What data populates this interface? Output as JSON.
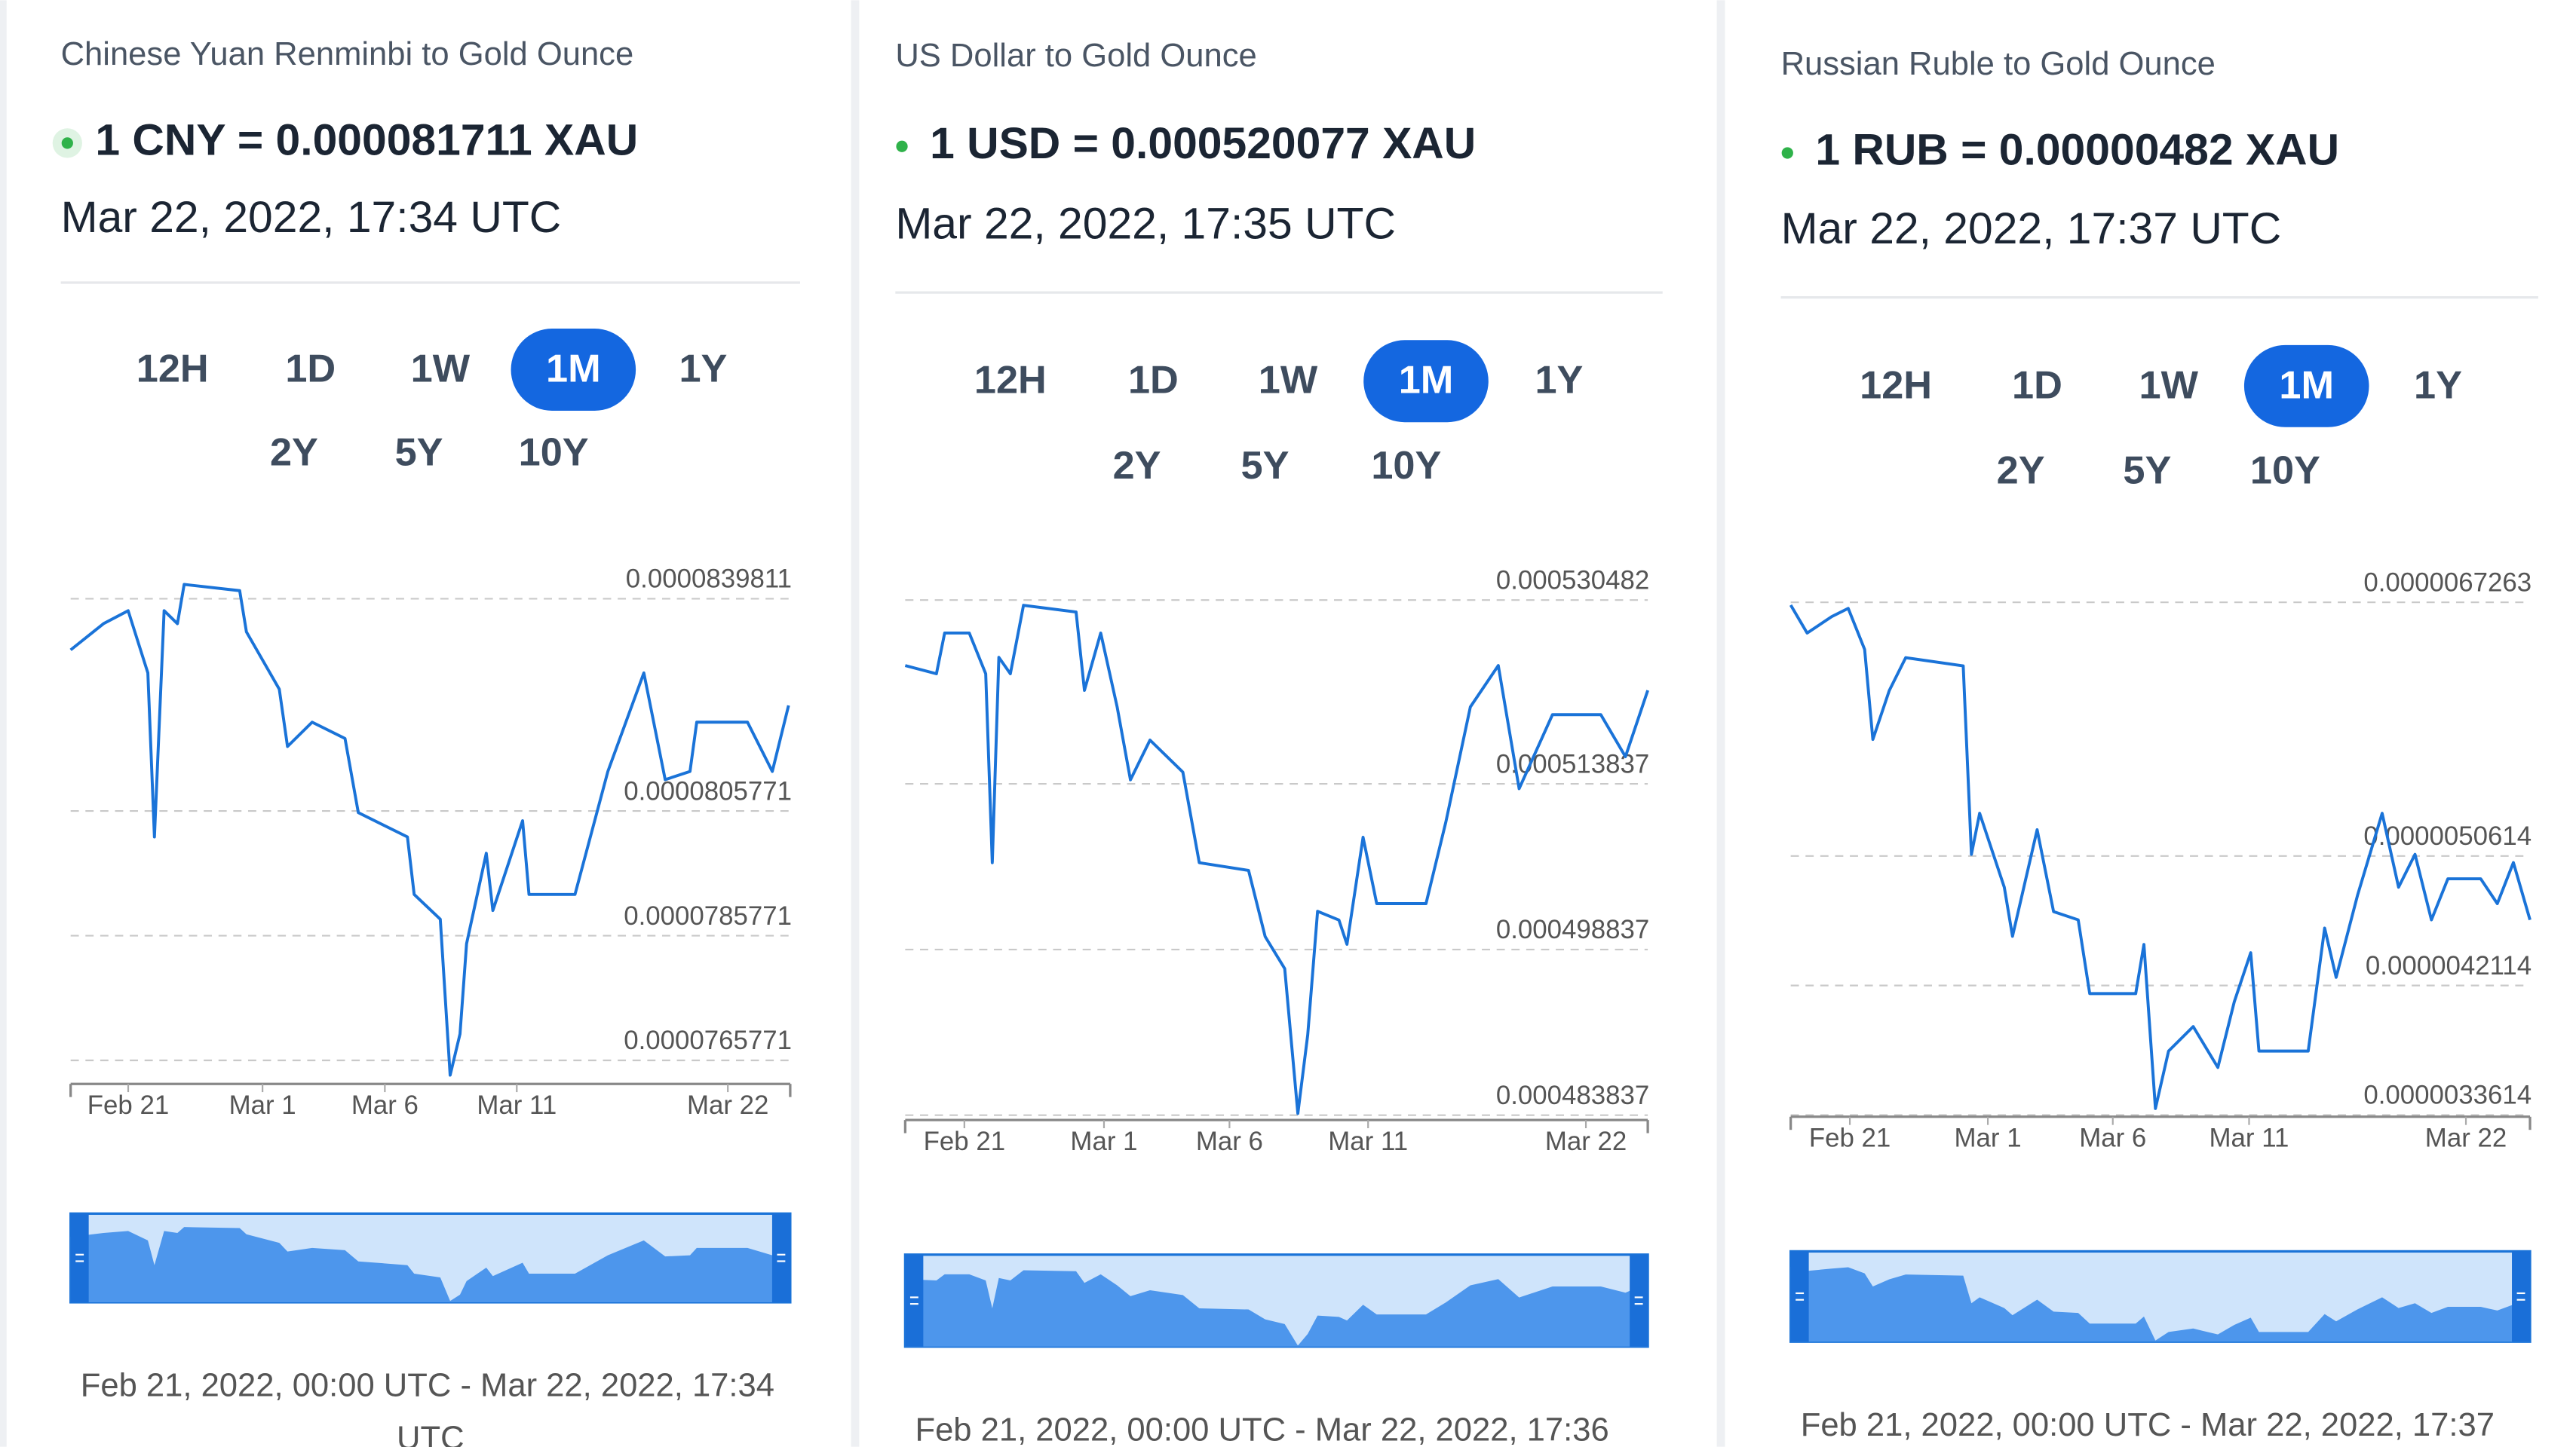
{
  "panels": [
    {
      "title": "Chinese Yuan Renminbi to Gold Ounce",
      "rate": "1 CNY = 0.000081711 XAU",
      "date": "Mar 22, 2022, 17:34 UTC",
      "ranges": [
        "12H",
        "1D",
        "1W",
        "1M",
        "1Y",
        "2Y",
        "5Y",
        "10Y"
      ],
      "selected": "1M",
      "chart": {
        "type": "line",
        "color": "#1a73d8",
        "x": [
          0,
          1.37,
          2.4,
          3.22,
          3.49,
          3.9,
          4.45,
          4.73,
          7.05,
          7.33,
          8.7,
          9.04,
          10.07,
          11.44,
          11.99,
          14.04,
          14.32,
          15.41,
          15.82,
          16.23,
          16.51,
          17.33,
          17.6,
          18.84,
          19.11,
          21.03,
          22.4,
          23.9,
          24.79,
          25.82,
          26.1,
          28.22,
          29.25,
          29.93
        ],
        "values": [
          8.316e-05,
          8.358e-05,
          8.379e-05,
          8.279e-05,
          8.016e-05,
          8.379e-05,
          8.358e-05,
          8.421e-05,
          8.411e-05,
          8.345e-05,
          8.253e-05,
          8.161e-05,
          8.2e-05,
          8.174e-05,
          8.055e-05,
          8.016e-05,
          7.924e-05,
          7.884e-05,
          7.634e-05,
          7.7e-05,
          7.845e-05,
          7.99e-05,
          7.898e-05,
          8.042e-05,
          7.924e-05,
          7.924e-05,
          8.121e-05,
          8.279e-05,
          8.108e-05,
          8.121e-05,
          8.2e-05,
          8.2e-05,
          8.121e-05,
          8.227e-05
        ],
        "xlim": [
          0,
          30
        ],
        "xticks": [
          {
            "value": 2.4,
            "label": "Feb 21"
          },
          {
            "value": 8,
            "label": "Mar 1"
          },
          {
            "value": 13.1,
            "label": "Mar 6"
          },
          {
            "value": 18.6,
            "label": "Mar 11"
          },
          {
            "value": 27.4,
            "label": "Mar 22"
          }
        ],
        "ylim": [
          7.62e-05,
          8.46e-05
        ],
        "yticks": [
          7.65771e-05,
          7.85771e-05,
          8.05771e-05,
          8.39811e-05
        ],
        "grid": true
      },
      "range_text": [
        "Feb 21, 2022, 00:00 UTC - Mar 22, 2022, 17:34",
        "UTC"
      ]
    },
    {
      "title": "US Dollar to Gold Ounce",
      "rate": "1 USD = 0.000520077 XAU",
      "date": "Mar 22, 2022, 17:35 UTC",
      "ranges": [
        "12H",
        "1D",
        "1W",
        "1M",
        "1Y",
        "2Y",
        "5Y",
        "10Y"
      ],
      "selected": "1M",
      "chart": {
        "type": "line",
        "color": "#1a73d8",
        "x": [
          0,
          1.26,
          1.59,
          2.59,
          3.25,
          3.52,
          3.78,
          4.25,
          4.78,
          6.9,
          7.24,
          7.9,
          8.56,
          9.1,
          9.89,
          11.22,
          11.88,
          13.87,
          14.54,
          15.33,
          15.86,
          16.26,
          16.66,
          17.52,
          17.85,
          18.5,
          19.05,
          21.04,
          21.84,
          22.83,
          23.96,
          24.8,
          26.15,
          28.1,
          29.1,
          30
        ],
        "values": [
          0.00052455,
          0.0005238,
          0.0005275,
          0.0005275,
          0.0005238,
          0.0005067,
          0.0005253,
          0.0005238,
          0.00053,
          0.0005294,
          0.0005223,
          0.0005275,
          0.0005208,
          0.0005142,
          0.0005178,
          0.0005149,
          0.0005067,
          0.000506,
          0.0005,
          0.0004971,
          0.000484,
          0.0004911,
          0.0005023,
          0.0005015,
          0.0004993,
          0.000509,
          0.000503,
          0.000503,
          0.0005104,
          0.0005208,
          0.00052455,
          0.0005134,
          0.0005201,
          0.0005201,
          0.0005163,
          0.0005223
        ],
        "xlim": [
          0,
          30
        ],
        "xticks": [
          {
            "value": 2.39,
            "label": "Feb 21"
          },
          {
            "value": 8.03,
            "label": "Mar 1"
          },
          {
            "value": 13.1,
            "label": "Mar 6"
          },
          {
            "value": 18.7,
            "label": "Mar 11"
          },
          {
            "value": 27.5,
            "label": "Mar 22"
          }
        ],
        "ylim": [
          0.0004834,
          0.0005335
        ],
        "yticks": [
          0.000483837,
          0.000498837,
          0.000513837,
          0.000530482
        ],
        "grid": true
      },
      "range_text": [
        "Feb 21, 2022, 00:00 UTC - Mar 22, 2022, 17:36"
      ]
    },
    {
      "title": "Russian Ruble to Gold Ounce",
      "rate": "1 RUB = 0.00000482 XAU",
      "date": "Mar 22, 2022, 17:37 UTC",
      "ranges": [
        "12H",
        "1D",
        "1W",
        "1M",
        "1Y",
        "2Y",
        "5Y",
        "10Y"
      ],
      "selected": "1M",
      "chart": {
        "type": "line",
        "color": "#1a73d8",
        "x": [
          0,
          0.67,
          1.67,
          2.33,
          3,
          3.33,
          4,
          4.67,
          7,
          7.33,
          7.67,
          8.67,
          9,
          10,
          10.67,
          11.67,
          12.13,
          14,
          14.33,
          14.8,
          15.33,
          16.33,
          17.33,
          18,
          18.67,
          19,
          21,
          21.67,
          22.13,
          23,
          24,
          24.67,
          25.33,
          26,
          26.67,
          28,
          28.67,
          29.33,
          30
        ],
        "values": [
          6.708e-06,
          6.525e-06,
          6.632e-06,
          6.686e-06,
          6.417e-06,
          5.826e-06,
          6.148e-06,
          6.363e-06,
          6.309e-06,
          5.072e-06,
          5.341e-06,
          4.857e-06,
          4.534e-06,
          5.234e-06,
          4.696e-06,
          4.642e-06,
          4.158e-06,
          4.158e-06,
          4.48e-06,
          3.404e-06,
          3.781e-06,
          3.942e-06,
          3.673e-06,
          4.104e-06,
          4.427e-06,
          3.781e-06,
          3.781e-06,
          4.588e-06,
          4.265e-06,
          4.803e-06,
          5.341e-06,
          4.857e-06,
          5.072e-06,
          4.642e-06,
          4.911e-06,
          4.911e-06,
          4.749e-06,
          5.018e-06,
          4.642e-06
        ],
        "xlim": [
          0,
          30
        ],
        "xticks": [
          {
            "value": 2.4,
            "label": "Feb 21"
          },
          {
            "value": 8,
            "label": "Mar 1"
          },
          {
            "value": 13.07,
            "label": "Mar 6"
          },
          {
            "value": 18.6,
            "label": "Mar 11"
          },
          {
            "value": 27.4,
            "label": "Mar 22"
          }
        ],
        "ylim": [
          3.35e-06,
          6.96e-06
        ],
        "yticks": [
          3.3614e-06,
          4.2114e-06,
          5.0614e-06,
          6.7263e-06
        ],
        "grid": true
      },
      "range_text": [
        "Feb 21, 2022, 00:00 UTC - Mar 22, 2022, 17:37"
      ]
    }
  ]
}
